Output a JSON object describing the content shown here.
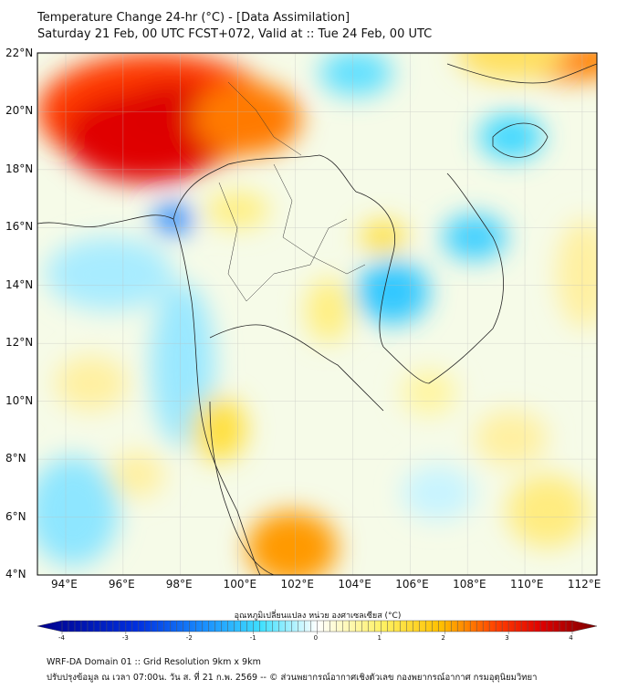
{
  "title": "Temperature Change 24-hr (°C) - [Data Assimilation]",
  "subtitle": "Saturday 21 Feb, 00 UTC FCST+072, Valid at :: Tue 24 Feb, 00 UTC",
  "map": {
    "lon_labels": [
      "94°E",
      "96°E",
      "98°E",
      "100°E",
      "102°E",
      "104°E",
      "106°E",
      "108°E",
      "110°E",
      "112°E"
    ],
    "lat_labels": [
      "22°N",
      "20°N",
      "18°N",
      "16°N",
      "14°N",
      "12°N",
      "10°N",
      "8°N",
      "6°N",
      "4°N"
    ],
    "colors": {
      "strong_cold": "#00008b",
      "cold": "#33ccff",
      "neutral": "#ffffff",
      "warm": "#ffee44",
      "hot": "#ff2200",
      "strong_hot": "#7a0000"
    }
  },
  "colorbar": {
    "title": "อุณหภูมิเปลี่ยนแปลง หน่วย องศาเซลเซียส (°C)",
    "ticks": [
      "-4",
      "-3",
      "-2",
      "-1",
      "0",
      "1",
      "2",
      "3",
      "4"
    ],
    "range": [
      -4,
      4
    ]
  },
  "footer": {
    "line1": "WRF-DA Domain 01 :: Grid Resolution 9km x 9km",
    "line2": "ปรับปรุงข้อมูล ณ เวลา 07:00น. วัน ส. ที่ 21 ก.พ. 2569 -- © ส่วนพยากรณ์อากาศเชิงตัวเลข กองพยากรณ์อากาศ กรมอุตุนิยมวิทยา"
  }
}
